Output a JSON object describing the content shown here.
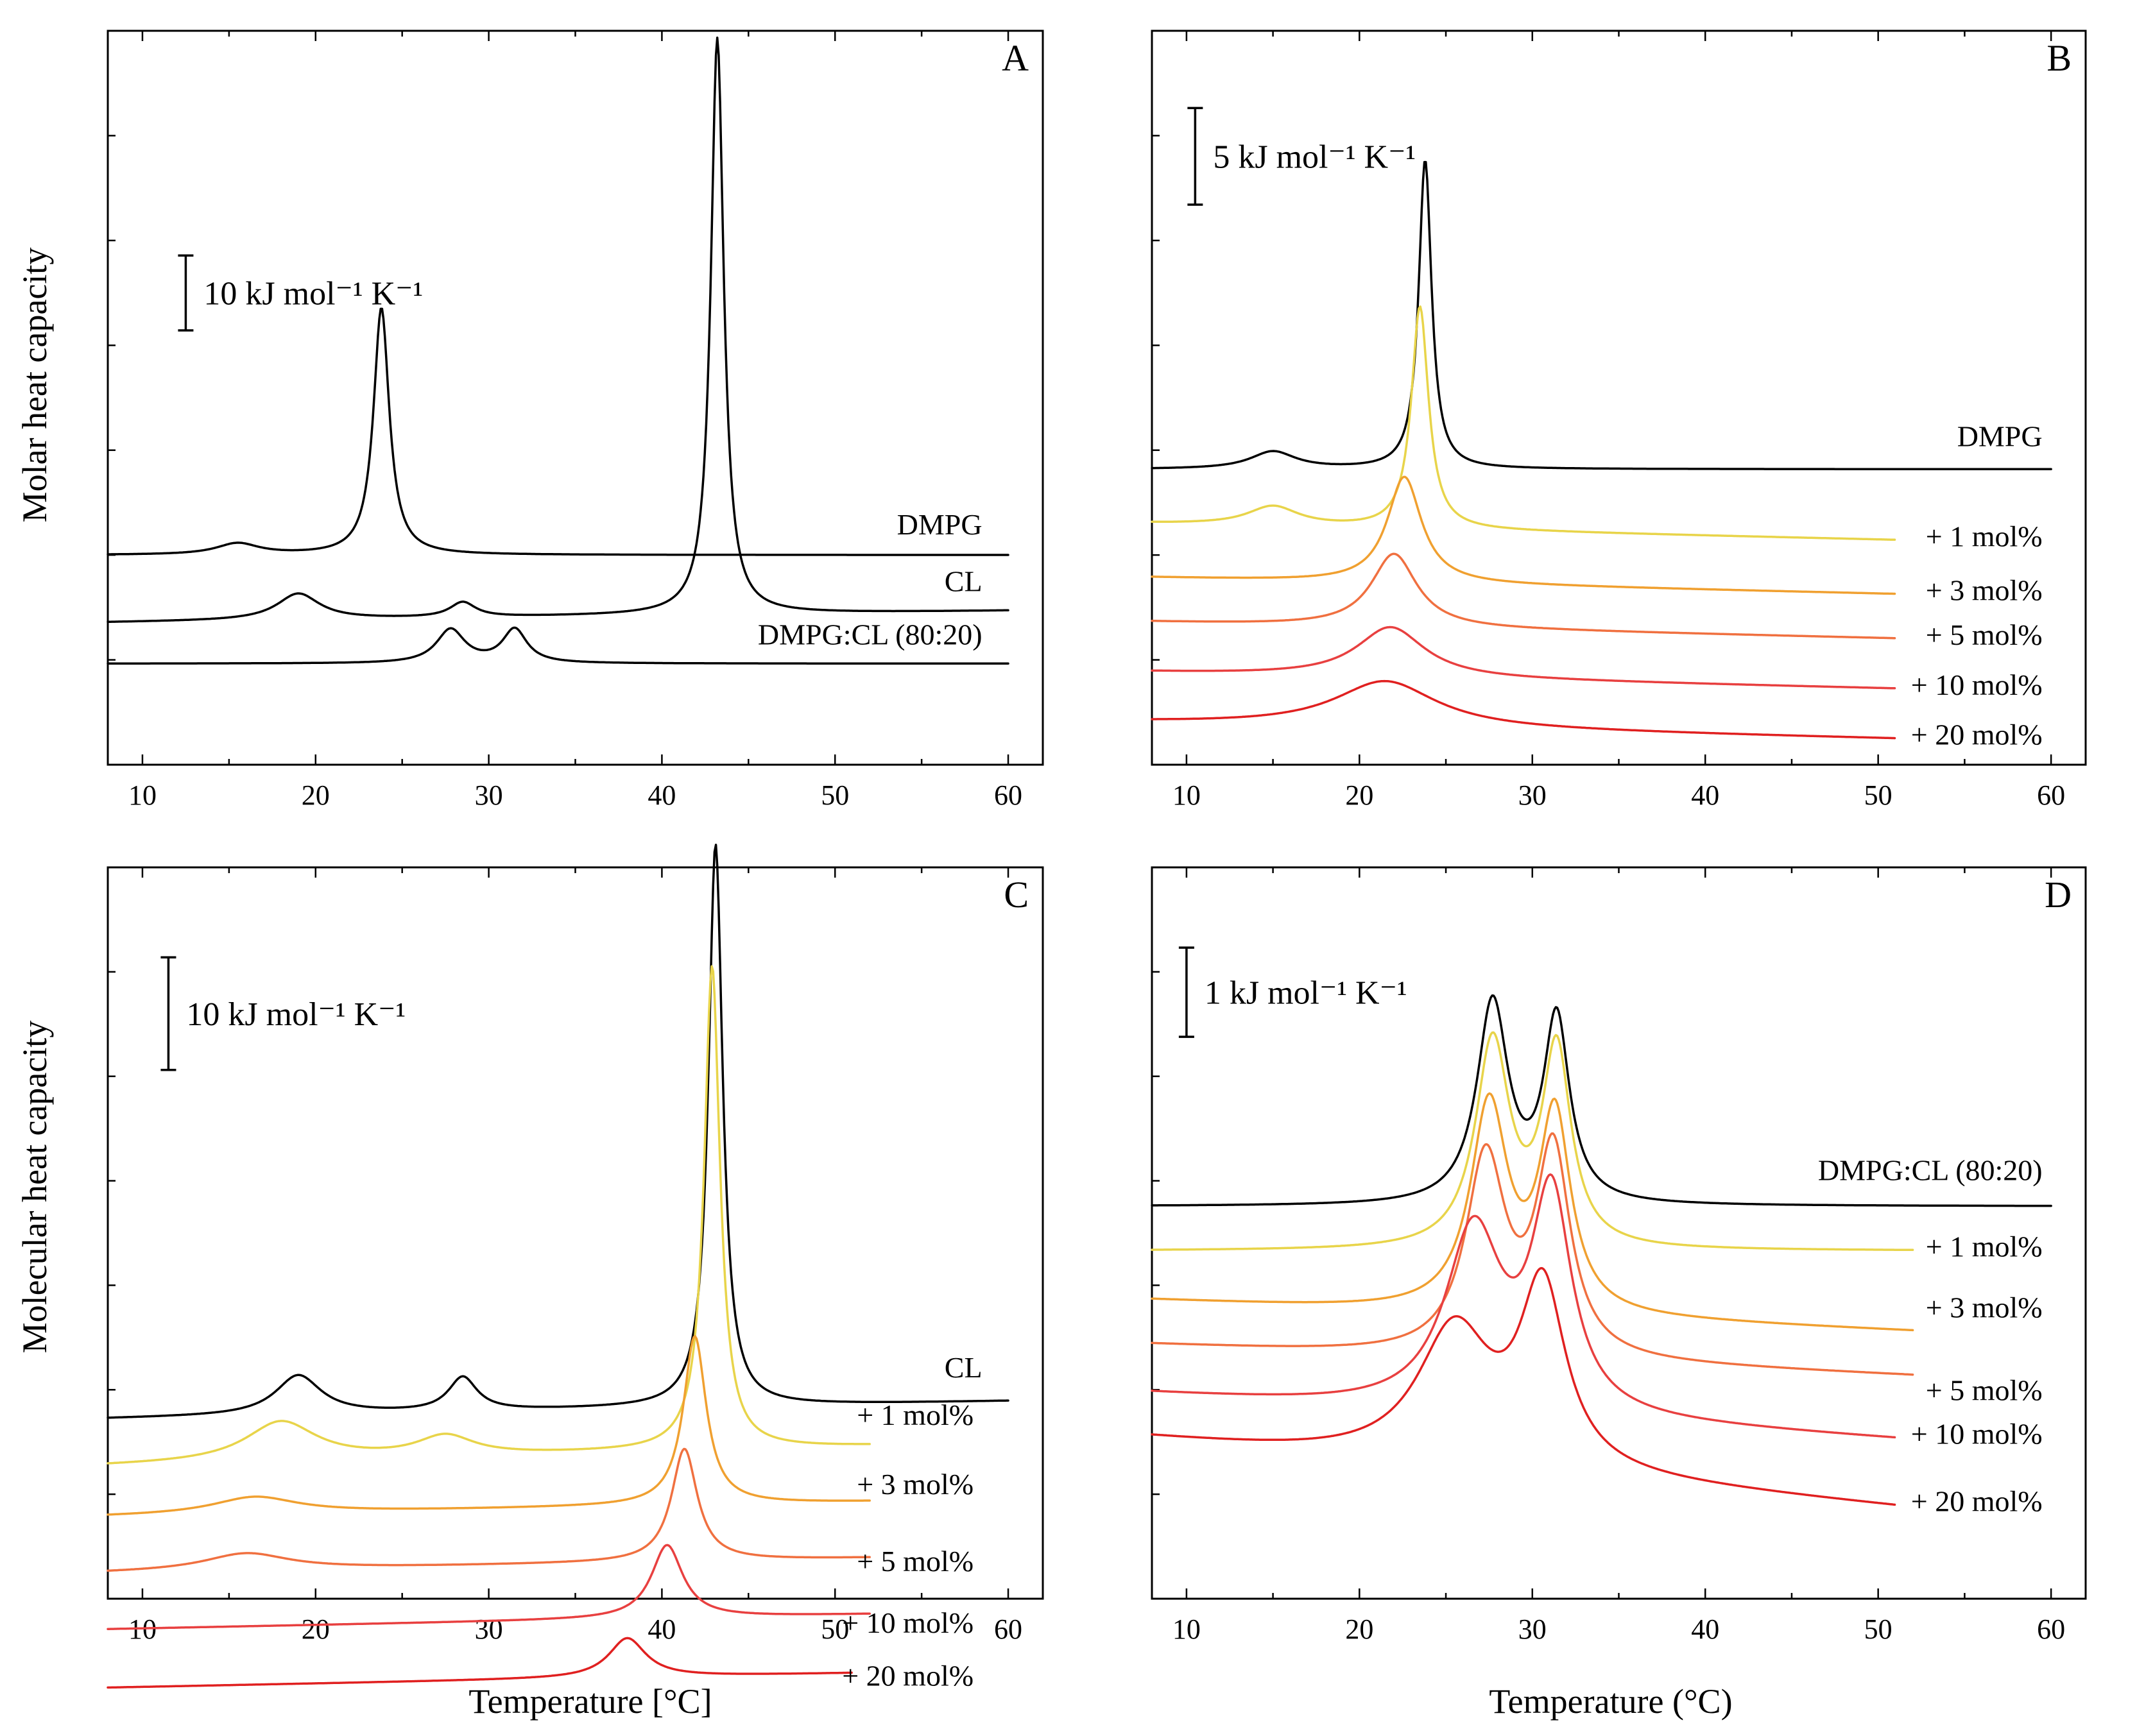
{
  "figure": {
    "y_axis_title_top": "Molar heat capacity",
    "y_axis_title_bottom": "Molecular heat capacity",
    "x_axis_title_left": "Temperature [°C]",
    "x_axis_title_right": "Temperature (°C)"
  },
  "chart_data": [
    {
      "panel": "A",
      "type": "line",
      "xlabel": "Temperature [°C]",
      "ylabel": "Molar heat capacity",
      "xlim": [
        8,
        62
      ],
      "ylim": [
        -6,
        92
      ],
      "xticks": [
        10,
        20,
        30,
        40,
        50,
        60
      ],
      "scale_bar": {
        "text": "10 kJ mol⁻¹ K⁻¹",
        "value": 10
      },
      "series": [
        {
          "name": "DMPG",
          "label": "DMPG",
          "color": "#000000",
          "baseline": 22,
          "slope": 0.0,
          "end": 60,
          "peaks": [
            [
              15.5,
              1.5,
              1.5
            ],
            [
              23.8,
              0.55,
              33
            ]
          ]
        },
        {
          "name": "CL",
          "label": "CL",
          "color": "#000000",
          "baseline": 13,
          "slope": 0.03,
          "end": 60,
          "peaks": [
            [
              19,
              1.5,
              3.5
            ],
            [
              28.5,
              0.9,
              2.0
            ],
            [
              43.2,
              0.45,
              77
            ]
          ]
        },
        {
          "name": "DMPG:CL (80:20)",
          "label": "DMPG:CL (80:20)",
          "color": "#000000",
          "baseline": 7.5,
          "slope": 0.0,
          "end": 60,
          "peaks": [
            [
              27.8,
              1.0,
              4.5
            ],
            [
              31.5,
              0.85,
              4.5
            ]
          ]
        }
      ]
    },
    {
      "panel": "B",
      "type": "line",
      "xlabel": "Temperature (°C)",
      "ylabel": "Molar heat capacity",
      "xlim": [
        8,
        62
      ],
      "ylim": [
        -2,
        36
      ],
      "xticks": [
        10,
        20,
        30,
        40,
        50,
        60
      ],
      "scale_bar": {
        "text": "5 kJ mol⁻¹ K⁻¹",
        "value": 5
      },
      "series": [
        {
          "name": "DMPG",
          "label": "DMPG",
          "color": "#000000",
          "baseline": 13.3,
          "slope": 0.0,
          "end": 60,
          "peaks": [
            [
              15,
              1.6,
              0.9
            ],
            [
              23.8,
              0.45,
              16
            ]
          ]
        },
        {
          "name": "+ 1 mol%",
          "label": "+ 1 mol%",
          "color": "#e8d44a",
          "baseline": 10.5,
          "slope": -0.02,
          "end": 51,
          "peaks": [
            [
              15,
              1.8,
              1.0
            ],
            [
              23.5,
              0.6,
              11.5
            ]
          ]
        },
        {
          "name": "+ 3 mol%",
          "label": "+ 3 mol%",
          "color": "#f0a030",
          "baseline": 7.7,
          "slope": -0.02,
          "end": 51,
          "peaks": [
            [
              22.6,
              1.2,
              5.5
            ]
          ]
        },
        {
          "name": "+ 5 mol%",
          "label": "+ 5 mol%",
          "color": "#f07040",
          "baseline": 5.4,
          "slope": -0.02,
          "end": 51,
          "peaks": [
            [
              22,
              1.6,
              3.8
            ]
          ]
        },
        {
          "name": "+ 10 mol%",
          "label": "+ 10 mol%",
          "color": "#e84040",
          "baseline": 2.8,
          "slope": -0.02,
          "end": 51,
          "peaks": [
            [
              21.8,
              2.4,
              2.6
            ]
          ]
        },
        {
          "name": "+ 20 mol%",
          "label": "+ 20 mol%",
          "color": "#e02020",
          "baseline": 0.2,
          "slope": -0.02,
          "end": 51,
          "peaks": [
            [
              21.5,
              3.6,
              2.4
            ]
          ]
        }
      ]
    },
    {
      "panel": "C",
      "type": "line",
      "xlabel": "Temperature [°C]",
      "ylabel": "Molecular heat capacity",
      "xlim": [
        8,
        62
      ],
      "ylim": [
        -2,
        63
      ],
      "xticks": [
        10,
        20,
        30,
        40,
        50,
        60
      ],
      "scale_bar": {
        "text": "10 kJ mol⁻¹ K⁻¹",
        "value": 10
      },
      "series": [
        {
          "name": "CL",
          "label": "CL",
          "color": "#000000",
          "baseline": 14,
          "slope": 0.03,
          "end": 60,
          "peaks": [
            [
              19,
              1.6,
              3.5
            ],
            [
              28.5,
              1.0,
              3.0
            ],
            [
              43.1,
              0.5,
              50
            ]
          ]
        },
        {
          "name": "+ 1 mol%",
          "label": "+ 1 mol%",
          "color": "#e8d44a",
          "baseline": 9.8,
          "slope": 0.04,
          "end": 52,
          "peaks": [
            [
              18,
              2.5,
              3.5
            ],
            [
              27.5,
              2.0,
              1.8
            ],
            [
              42.9,
              0.55,
              43
            ]
          ]
        },
        {
          "name": "+ 3 mol%",
          "label": "+ 3 mol%",
          "color": "#f0a030",
          "baseline": 5.3,
          "slope": 0.03,
          "end": 52,
          "peaks": [
            [
              16.5,
              3.0,
              1.5
            ],
            [
              41.9,
              0.8,
              15
            ]
          ]
        },
        {
          "name": "+ 5 mol%",
          "label": "+ 5 mol%",
          "color": "#f07040",
          "baseline": 0.3,
          "slope": 0.03,
          "end": 52,
          "peaks": [
            [
              16,
              3.0,
              1.5
            ],
            [
              41.3,
              0.9,
              10
            ]
          ]
        },
        {
          "name": "+ 10 mol%",
          "label": "+ 10 mol%",
          "color": "#e84040",
          "baseline": -4.7,
          "slope": 0.03,
          "end": 52,
          "peaks": [
            [
              40.3,
              1.1,
              6.5
            ]
          ]
        },
        {
          "name": "+ 20 mol%",
          "label": "+ 20 mol%",
          "color": "#e02020",
          "baseline": -9.9,
          "slope": 0.03,
          "end": 51,
          "peaks": [
            [
              38,
              1.3,
              3.5
            ]
          ]
        }
      ]
    },
    {
      "panel": "D",
      "type": "line",
      "xlabel": "Temperature (°C)",
      "ylabel": "Molecular heat capacity",
      "xlim": [
        8,
        62
      ],
      "ylim": [
        -0.8,
        7.4
      ],
      "xticks": [
        10,
        20,
        30,
        40,
        50,
        60
      ],
      "scale_bar": {
        "text": "1 kJ mol⁻¹ K⁻¹",
        "value": 1
      },
      "series": [
        {
          "name": "DMPG:CL (80:20)",
          "label": "DMPG:CL (80:20)",
          "color": "#000000",
          "baseline": 3.6,
          "slope": 0.0,
          "end": 60,
          "peaks": [
            [
              27.7,
              1.1,
              2.25
            ],
            [
              31.4,
              0.9,
              2.05
            ]
          ]
        },
        {
          "name": "+ 1 mol%",
          "label": "+ 1 mol%",
          "color": "#e8d44a",
          "baseline": 3.1,
          "slope": 0.0,
          "end": 52,
          "peaks": [
            [
              27.7,
              1.2,
              2.3
            ],
            [
              31.4,
              1.0,
              2.2
            ]
          ]
        },
        {
          "name": "+ 3 mol%",
          "label": "+ 3 mol%",
          "color": "#f0a030",
          "baseline": 2.55,
          "slope": -0.008,
          "end": 52,
          "peaks": [
            [
              27.5,
              1.3,
              2.3
            ],
            [
              31.3,
              1.1,
              2.2
            ]
          ]
        },
        {
          "name": "+ 5 mol%",
          "label": "+ 5 mol%",
          "color": "#f07040",
          "baseline": 2.05,
          "slope": -0.008,
          "end": 52,
          "peaks": [
            [
              27.3,
              1.4,
              2.2
            ],
            [
              31.2,
              1.2,
              2.3
            ]
          ]
        },
        {
          "name": "+ 10 mol%",
          "label": "+ 10 mol%",
          "color": "#e84040",
          "baseline": 1.5,
          "slope": -0.012,
          "end": 51,
          "peaks": [
            [
              26.6,
              2.0,
              2.0
            ],
            [
              31.1,
              1.4,
              2.4
            ]
          ]
        },
        {
          "name": "+ 20 mol%",
          "label": "+ 20 mol%",
          "color": "#e02020",
          "baseline": 1.0,
          "slope": -0.018,
          "end": 51,
          "peaks": [
            [
              25.5,
              2.6,
              1.5
            ],
            [
              30.6,
              1.6,
              2.0
            ]
          ]
        }
      ]
    }
  ]
}
